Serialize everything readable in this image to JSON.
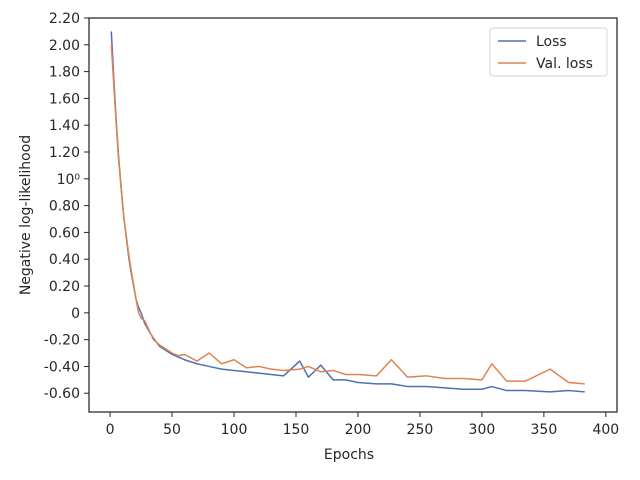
{
  "chart_data": {
    "type": "line",
    "x_label": "Epochs",
    "y_label": "Negative log-likelihood",
    "x": [
      1,
      3,
      5,
      7,
      9,
      11,
      13,
      15,
      17,
      19,
      21,
      23,
      25,
      28,
      31,
      35,
      40,
      45,
      50,
      55,
      60,
      70,
      80,
      90,
      100,
      110,
      120,
      130,
      140,
      153,
      160,
      170,
      180,
      190,
      200,
      215,
      227,
      240,
      255,
      270,
      285,
      300,
      308,
      320,
      335,
      355,
      370,
      383
    ],
    "series": [
      {
        "name": "Loss",
        "color": "#4c72b0",
        "values": [
          2.1,
          1.75,
          1.42,
          1.15,
          0.93,
          0.72,
          0.57,
          0.42,
          0.3,
          0.2,
          0.1,
          0.04,
          0.0,
          -0.08,
          -0.13,
          -0.19,
          -0.25,
          -0.28,
          -0.31,
          -0.33,
          -0.35,
          -0.38,
          -0.4,
          -0.42,
          -0.43,
          -0.44,
          -0.45,
          -0.46,
          -0.47,
          -0.36,
          -0.48,
          -0.39,
          -0.5,
          -0.5,
          -0.52,
          -0.53,
          -0.53,
          -0.55,
          -0.55,
          -0.56,
          -0.57,
          -0.57,
          -0.55,
          -0.58,
          -0.58,
          -0.59,
          -0.58,
          -0.59
        ]
      },
      {
        "name": "Val. loss",
        "color": "#dd8452",
        "values": [
          2.0,
          1.7,
          1.4,
          1.13,
          0.92,
          0.72,
          0.58,
          0.44,
          0.32,
          0.21,
          0.1,
          0.0,
          -0.04,
          -0.06,
          -0.12,
          -0.2,
          -0.24,
          -0.27,
          -0.3,
          -0.32,
          -0.31,
          -0.36,
          -0.3,
          -0.38,
          -0.35,
          -0.41,
          -0.4,
          -0.42,
          -0.43,
          -0.42,
          -0.4,
          -0.44,
          -0.43,
          -0.46,
          -0.46,
          -0.47,
          -0.35,
          -0.48,
          -0.47,
          -0.49,
          -0.49,
          -0.5,
          -0.38,
          -0.51,
          -0.51,
          -0.42,
          -0.52,
          -0.53
        ]
      }
    ],
    "xlim": [
      -17,
      409
    ],
    "xticks": [
      0,
      50,
      100,
      150,
      200,
      250,
      300,
      350,
      400
    ],
    "ylim": [
      -0.74,
      2.2
    ],
    "yticks": [
      {
        "value": -0.6,
        "label": "-0.60"
      },
      {
        "value": -0.4,
        "label": "-0.40"
      },
      {
        "value": -0.2,
        "label": "-0.20"
      },
      0,
      {
        "value": 0.2,
        "label": "0.20"
      },
      {
        "value": 0.4,
        "label": "0.40"
      },
      {
        "value": 0.6,
        "label": "0.60"
      },
      {
        "value": 0.8,
        "label": "0.80"
      },
      {
        "value": 1,
        "label": "10⁰"
      },
      {
        "value": 1.2,
        "label": "1.20"
      },
      {
        "value": 1.4,
        "label": "1.40"
      },
      {
        "value": 1.6,
        "label": "1.60"
      },
      {
        "value": 1.8,
        "label": "1.80"
      },
      {
        "value": 2,
        "label": "2.00"
      },
      {
        "value": 2.2,
        "label": "2.20"
      }
    ],
    "legend": "upper right",
    "grid": false
  }
}
